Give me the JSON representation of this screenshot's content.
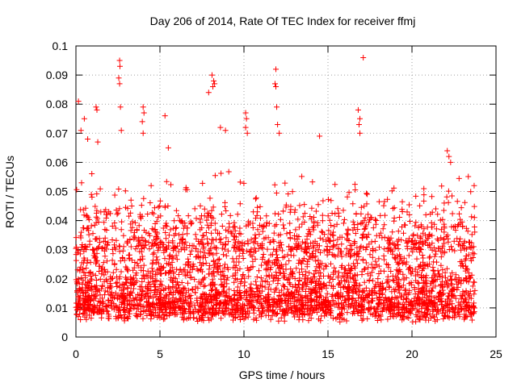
{
  "chart_data": {
    "type": "scatter",
    "title": "Day 206 of 2014, Rate Of TEC Index for receiver ffmj",
    "xlabel": "GPS time / hours",
    "ylabel": "ROTI / TECUs",
    "xlim": [
      0,
      25
    ],
    "ylim": [
      0,
      0.1
    ],
    "xticks": [
      0,
      5,
      10,
      15,
      20,
      25
    ],
    "yticks": [
      0,
      0.01,
      0.02,
      0.03,
      0.04,
      0.05,
      0.06,
      0.07,
      0.08,
      0.09,
      0.1
    ],
    "xtick_labels": [
      "0",
      "5",
      "10",
      "15",
      "20",
      "25"
    ],
    "ytick_labels": [
      "0",
      "0.01",
      "0.02",
      "0.03",
      "0.04",
      "0.05",
      "0.06",
      "0.07",
      "0.08",
      "0.09",
      "0.1"
    ],
    "grid": true,
    "marker": "+",
    "series": [
      {
        "name": "ROTI",
        "color": "#ff0000",
        "x_range": [
          0,
          23.75
        ],
        "typical_range": [
          0.005,
          0.045
        ],
        "points": [
          {
            "x": 0.15,
            "y": 0.081
          },
          {
            "x": 0.3,
            "y": 0.071
          },
          {
            "x": 0.5,
            "y": 0.075
          },
          {
            "x": 0.7,
            "y": 0.068
          },
          {
            "x": 1.2,
            "y": 0.079
          },
          {
            "x": 1.25,
            "y": 0.078
          },
          {
            "x": 1.3,
            "y": 0.067
          },
          {
            "x": 2.6,
            "y": 0.095
          },
          {
            "x": 2.62,
            "y": 0.093
          },
          {
            "x": 2.55,
            "y": 0.089
          },
          {
            "x": 2.6,
            "y": 0.087
          },
          {
            "x": 2.65,
            "y": 0.079
          },
          {
            "x": 2.7,
            "y": 0.071
          },
          {
            "x": 4.0,
            "y": 0.079
          },
          {
            "x": 4.05,
            "y": 0.077
          },
          {
            "x": 3.95,
            "y": 0.074
          },
          {
            "x": 4.0,
            "y": 0.07
          },
          {
            "x": 5.3,
            "y": 0.076
          },
          {
            "x": 5.5,
            "y": 0.065
          },
          {
            "x": 7.9,
            "y": 0.084
          },
          {
            "x": 8.1,
            "y": 0.09
          },
          {
            "x": 8.2,
            "y": 0.088
          },
          {
            "x": 8.25,
            "y": 0.087
          },
          {
            "x": 8.15,
            "y": 0.086
          },
          {
            "x": 8.6,
            "y": 0.072
          },
          {
            "x": 8.9,
            "y": 0.071
          },
          {
            "x": 10.1,
            "y": 0.077
          },
          {
            "x": 10.15,
            "y": 0.075
          },
          {
            "x": 10.1,
            "y": 0.072
          },
          {
            "x": 10.2,
            "y": 0.07
          },
          {
            "x": 11.9,
            "y": 0.092
          },
          {
            "x": 11.85,
            "y": 0.087
          },
          {
            "x": 11.9,
            "y": 0.086
          },
          {
            "x": 11.95,
            "y": 0.079
          },
          {
            "x": 12.0,
            "y": 0.073
          },
          {
            "x": 12.1,
            "y": 0.07
          },
          {
            "x": 14.5,
            "y": 0.069
          },
          {
            "x": 17.1,
            "y": 0.096
          },
          {
            "x": 16.8,
            "y": 0.078
          },
          {
            "x": 16.9,
            "y": 0.075
          },
          {
            "x": 16.85,
            "y": 0.073
          },
          {
            "x": 16.9,
            "y": 0.07
          },
          {
            "x": 22.1,
            "y": 0.064
          },
          {
            "x": 22.2,
            "y": 0.062
          },
          {
            "x": 22.3,
            "y": 0.06
          },
          {
            "x": 23.7,
            "y": 0.052
          }
        ]
      }
    ]
  }
}
